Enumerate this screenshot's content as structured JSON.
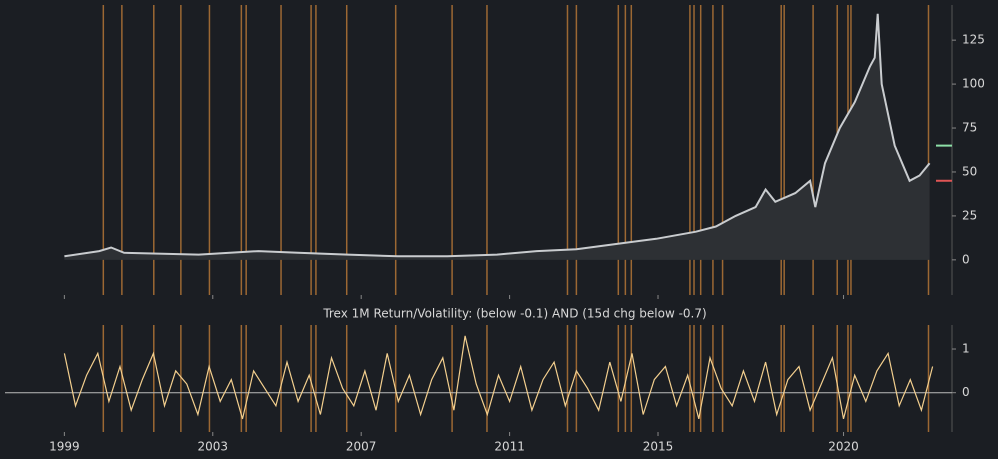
{
  "chart_data": [
    {
      "type": "line",
      "xlim": [
        1997.4,
        2022.6
      ],
      "ylim": [
        -20,
        145
      ],
      "yticks": [
        0,
        25,
        50,
        75,
        100,
        125
      ],
      "event_color": "#c8813a",
      "events": [
        2000.05,
        2000.55,
        2001.41,
        2002.14,
        2002.91,
        2003.77,
        2003.9,
        2004.84,
        2005.65,
        2005.78,
        2006.61,
        2007.93,
        2009.45,
        2010.39,
        2012.56,
        2012.8,
        2013.93,
        2014.12,
        2014.28,
        2015.86,
        2015.97,
        2016.15,
        2016.48,
        2016.74,
        2018.32,
        2018.4,
        2019.18,
        2019.83,
        2020.12,
        2020.2,
        2022.29
      ],
      "series": [
        {
          "color": "#c9cccf",
          "x": [
            1999.0,
            1999.94,
            2000.26,
            2000.61,
            2002.62,
            2004.23,
            2005.3,
            2006.64,
            2007.98,
            2009.32,
            2010.66,
            2011.73,
            2012.8,
            2013.87,
            2014.95,
            2016.02,
            2016.56,
            2017.09,
            2017.63,
            2017.9,
            2018.16,
            2018.7,
            2019.1,
            2019.24,
            2019.5,
            2019.9,
            2020.31,
            2020.71,
            2020.84,
            2020.92,
            2021.03,
            2021.38,
            2021.78,
            2022.05,
            2022.32
          ],
          "values": [
            2,
            5,
            7,
            4,
            3,
            5,
            4,
            3,
            2,
            2,
            3,
            5,
            6,
            9,
            12,
            16,
            19,
            25,
            30,
            40,
            33,
            38,
            45,
            30,
            55,
            75,
            90,
            110,
            115,
            140,
            100,
            65,
            45,
            48,
            55
          ]
        }
      ],
      "levels": [
        {
          "value": 45,
          "color": "#e05555"
        },
        {
          "value": 65,
          "color": "#8ee0a8"
        }
      ]
    },
    {
      "type": "line",
      "title": "Trex 1M Return/Volatility: (below -0.1) AND (15d chg below -0.7)",
      "xlim": [
        1997.4,
        2022.6
      ],
      "ylim": [
        -0.9,
        1.55
      ],
      "yticks": [
        0,
        1
      ],
      "xticks": [
        1999,
        2003,
        2007,
        2011,
        2015,
        2020
      ],
      "series": [
        {
          "color": "#f3cf8e",
          "x": [
            1999.0,
            1999.3,
            1999.6,
            1999.9,
            2000.2,
            2000.5,
            2000.8,
            2001.1,
            2001.4,
            2001.7,
            2002.0,
            2002.3,
            2002.6,
            2002.9,
            2003.2,
            2003.5,
            2003.8,
            2004.1,
            2004.4,
            2004.7,
            2005.0,
            2005.3,
            2005.6,
            2005.9,
            2006.2,
            2006.5,
            2006.8,
            2007.1,
            2007.4,
            2007.7,
            2008.0,
            2008.3,
            2008.6,
            2008.9,
            2009.2,
            2009.5,
            2009.8,
            2010.1,
            2010.4,
            2010.7,
            2011.0,
            2011.3,
            2011.6,
            2011.9,
            2012.2,
            2012.5,
            2012.8,
            2013.1,
            2013.4,
            2013.7,
            2014.0,
            2014.3,
            2014.6,
            2014.9,
            2015.2,
            2015.5,
            2015.8,
            2016.1,
            2016.4,
            2016.7,
            2017.0,
            2017.3,
            2017.6,
            2017.9,
            2018.2,
            2018.5,
            2018.8,
            2019.1,
            2019.4,
            2019.7,
            2020.0,
            2020.3,
            2020.6,
            2020.9,
            2021.2,
            2021.5,
            2021.8,
            2022.1,
            2022.4
          ],
          "values": [
            0.9,
            -0.3,
            0.4,
            0.9,
            -0.2,
            0.6,
            -0.4,
            0.3,
            0.9,
            -0.3,
            0.5,
            0.2,
            -0.5,
            0.6,
            -0.2,
            0.3,
            -0.6,
            0.5,
            0.1,
            -0.3,
            0.7,
            -0.2,
            0.4,
            -0.5,
            0.8,
            0.1,
            -0.3,
            0.5,
            -0.4,
            0.9,
            -0.2,
            0.4,
            -0.5,
            0.3,
            0.8,
            -0.4,
            1.3,
            0.2,
            -0.5,
            0.4,
            -0.2,
            0.6,
            -0.4,
            0.3,
            0.7,
            -0.3,
            0.5,
            0.1,
            -0.4,
            0.7,
            -0.2,
            0.9,
            -0.5,
            0.3,
            0.6,
            -0.3,
            0.4,
            -0.6,
            0.8,
            0.1,
            -0.3,
            0.5,
            -0.2,
            0.7,
            -0.5,
            0.3,
            0.6,
            -0.4,
            0.2,
            0.8,
            -0.6,
            0.4,
            -0.2,
            0.5,
            0.9,
            -0.3,
            0.3,
            -0.4,
            0.6
          ]
        }
      ]
    }
  ]
}
